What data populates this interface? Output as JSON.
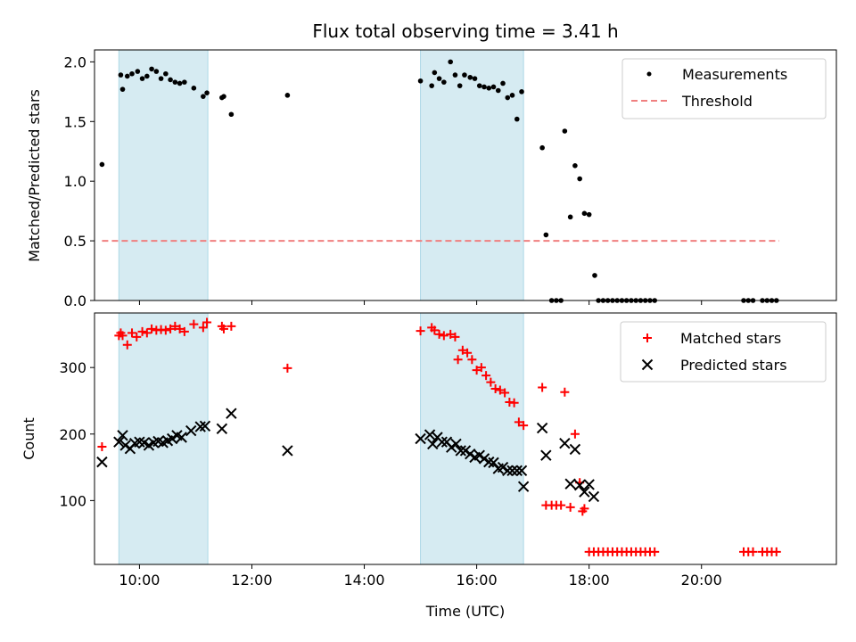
{
  "chart_data": {
    "title": "Flux total observing time = 3.41 h",
    "xlabel": "Time (UTC)",
    "x_unit": "hours UTC",
    "xlim": [
      "09:12",
      "22:24"
    ],
    "xticks": [
      "10:00",
      "12:00",
      "14:00",
      "16:00",
      "18:00",
      "20:00"
    ],
    "shaded_intervals": [
      [
        "09:38",
        "11:13"
      ],
      [
        "15:00",
        "16:50"
      ]
    ],
    "shaded_color": "#add8e6",
    "panels": [
      {
        "type": "scatter",
        "ylabel": "Matched/Predicted stars",
        "ylim": [
          0,
          2.1
        ],
        "yticks": [
          "0.0",
          "0.5",
          "1.0",
          "1.5",
          "2.0"
        ],
        "legend": "top-right",
        "threshold": {
          "name": "Threshold",
          "value": 0.5,
          "x_range": [
            "09:20",
            "21:23"
          ],
          "color": "#f08080"
        },
        "series": [
          {
            "name": "Measurements",
            "color": "#000000",
            "marker": "dot",
            "points": [
              [
                "09:20",
                1.14
              ],
              [
                "09:40",
                1.89
              ],
              [
                "09:42",
                1.77
              ],
              [
                "09:47",
                1.88
              ],
              [
                "09:52",
                1.9
              ],
              [
                "09:58",
                1.92
              ],
              [
                "10:03",
                1.86
              ],
              [
                "10:08",
                1.88
              ],
              [
                "10:13",
                1.94
              ],
              [
                "10:18",
                1.92
              ],
              [
                "10:23",
                1.86
              ],
              [
                "10:28",
                1.9
              ],
              [
                "10:33",
                1.85
              ],
              [
                "10:38",
                1.83
              ],
              [
                "10:43",
                1.82
              ],
              [
                "10:48",
                1.83
              ],
              [
                "10:58",
                1.78
              ],
              [
                "11:08",
                1.71
              ],
              [
                "11:12",
                1.74
              ],
              [
                "11:28",
                1.7
              ],
              [
                "11:30",
                1.71
              ],
              [
                "11:38",
                1.56
              ],
              [
                "12:38",
                1.72
              ],
              [
                "15:00",
                1.84
              ],
              [
                "15:12",
                1.8
              ],
              [
                "15:15",
                1.91
              ],
              [
                "15:20",
                1.86
              ],
              [
                "15:25",
                1.83
              ],
              [
                "15:32",
                2.0
              ],
              [
                "15:37",
                1.89
              ],
              [
                "15:42",
                1.8
              ],
              [
                "15:47",
                1.89
              ],
              [
                "15:53",
                1.87
              ],
              [
                "15:58",
                1.86
              ],
              [
                "16:03",
                1.8
              ],
              [
                "16:08",
                1.79
              ],
              [
                "16:13",
                1.78
              ],
              [
                "16:18",
                1.79
              ],
              [
                "16:23",
                1.76
              ],
              [
                "16:28",
                1.82
              ],
              [
                "16:33",
                1.7
              ],
              [
                "16:38",
                1.72
              ],
              [
                "16:43",
                1.52
              ],
              [
                "16:48",
                1.75
              ],
              [
                "17:10",
                1.28
              ],
              [
                "17:14",
                0.55
              ],
              [
                "17:20",
                0.0
              ],
              [
                "17:25",
                0.0
              ],
              [
                "17:30",
                0.0
              ],
              [
                "17:34",
                1.42
              ],
              [
                "17:40",
                0.7
              ],
              [
                "17:45",
                1.13
              ],
              [
                "17:50",
                1.02
              ],
              [
                "17:55",
                0.73
              ],
              [
                "18:00",
                0.72
              ],
              [
                "18:06",
                0.21
              ],
              [
                "18:10",
                0.0
              ],
              [
                "18:15",
                0.0
              ],
              [
                "18:20",
                0.0
              ],
              [
                "18:25",
                0.0
              ],
              [
                "18:30",
                0.0
              ],
              [
                "18:35",
                0.0
              ],
              [
                "18:40",
                0.0
              ],
              [
                "18:45",
                0.0
              ],
              [
                "18:50",
                0.0
              ],
              [
                "18:55",
                0.0
              ],
              [
                "19:00",
                0.0
              ],
              [
                "19:05",
                0.0
              ],
              [
                "19:10",
                0.0
              ],
              [
                "20:45",
                0.0
              ],
              [
                "20:50",
                0.0
              ],
              [
                "20:55",
                0.0
              ],
              [
                "21:05",
                0.0
              ],
              [
                "21:10",
                0.0
              ],
              [
                "21:15",
                0.0
              ],
              [
                "21:20",
                0.0
              ]
            ]
          }
        ]
      },
      {
        "type": "scatter",
        "ylabel": "Count",
        "ylim": [
          4,
          382
        ],
        "yticks": [
          "100",
          "200",
          "300"
        ],
        "legend": "top-right",
        "series": [
          {
            "name": "Matched stars",
            "color": "#ff0000",
            "marker": "plus",
            "points": [
              [
                "09:20",
                181
              ],
              [
                "09:38",
                348
              ],
              [
                "09:40",
                352
              ],
              [
                "09:42",
                348
              ],
              [
                "09:47",
                334
              ],
              [
                "09:52",
                352
              ],
              [
                "09:57",
                346
              ],
              [
                "10:03",
                354
              ],
              [
                "10:08",
                352
              ],
              [
                "10:13",
                358
              ],
              [
                "10:18",
                356
              ],
              [
                "10:23",
                357
              ],
              [
                "10:28",
                356
              ],
              [
                "10:33",
                358
              ],
              [
                "10:38",
                362
              ],
              [
                "10:43",
                358
              ],
              [
                "10:48",
                354
              ],
              [
                "10:58",
                365
              ],
              [
                "11:08",
                360
              ],
              [
                "11:12",
                368
              ],
              [
                "11:28",
                362
              ],
              [
                "11:30",
                358
              ],
              [
                "11:38",
                362
              ],
              [
                "12:38",
                299
              ],
              [
                "15:00",
                355
              ],
              [
                "15:12",
                360
              ],
              [
                "15:15",
                356
              ],
              [
                "15:20",
                350
              ],
              [
                "15:25",
                348
              ],
              [
                "15:32",
                350
              ],
              [
                "15:37",
                346
              ],
              [
                "15:40",
                312
              ],
              [
                "15:45",
                326
              ],
              [
                "15:50",
                322
              ],
              [
                "15:55",
                312
              ],
              [
                "16:00",
                296
              ],
              [
                "16:05",
                300
              ],
              [
                "16:10",
                288
              ],
              [
                "16:15",
                278
              ],
              [
                "16:20",
                268
              ],
              [
                "16:25",
                266
              ],
              [
                "16:30",
                262
              ],
              [
                "16:35",
                248
              ],
              [
                "16:40",
                247
              ],
              [
                "16:45",
                218
              ],
              [
                "16:50",
                213
              ],
              [
                "17:10",
                270
              ],
              [
                "17:14",
                93
              ],
              [
                "17:20",
                93
              ],
              [
                "17:25",
                93
              ],
              [
                "17:30",
                93
              ],
              [
                "17:34",
                263
              ],
              [
                "17:40",
                90
              ],
              [
                "17:45",
                200
              ],
              [
                "17:50",
                127
              ],
              [
                "17:53",
                84
              ],
              [
                "17:55",
                88
              ],
              [
                "18:00",
                23
              ],
              [
                "18:05",
                23
              ],
              [
                "18:10",
                23
              ],
              [
                "18:15",
                23
              ],
              [
                "18:20",
                23
              ],
              [
                "18:25",
                23
              ],
              [
                "18:30",
                23
              ],
              [
                "18:35",
                23
              ],
              [
                "18:40",
                23
              ],
              [
                "18:45",
                23
              ],
              [
                "18:50",
                23
              ],
              [
                "18:55",
                23
              ],
              [
                "19:00",
                23
              ],
              [
                "19:05",
                23
              ],
              [
                "19:10",
                23
              ],
              [
                "20:45",
                23
              ],
              [
                "20:50",
                23
              ],
              [
                "20:55",
                23
              ],
              [
                "21:05",
                23
              ],
              [
                "21:10",
                23
              ],
              [
                "21:15",
                23
              ],
              [
                "21:20",
                23
              ]
            ]
          },
          {
            "name": "Predicted stars",
            "color": "#000000",
            "marker": "x",
            "points": [
              [
                "09:20",
                158
              ],
              [
                "09:38",
                188
              ],
              [
                "09:42",
                198
              ],
              [
                "09:45",
                183
              ],
              [
                "09:50",
                178
              ],
              [
                "09:55",
                186
              ],
              [
                "10:00",
                188
              ],
              [
                "10:05",
                187
              ],
              [
                "10:10",
                183
              ],
              [
                "10:15",
                187
              ],
              [
                "10:20",
                189
              ],
              [
                "10:25",
                187
              ],
              [
                "10:30",
                190
              ],
              [
                "10:35",
                193
              ],
              [
                "10:40",
                198
              ],
              [
                "10:45",
                195
              ],
              [
                "10:55",
                205
              ],
              [
                "11:05",
                211
              ],
              [
                "11:10",
                212
              ],
              [
                "11:28",
                208
              ],
              [
                "11:38",
                231
              ],
              [
                "12:38",
                175
              ],
              [
                "15:00",
                193
              ],
              [
                "15:10",
                199
              ],
              [
                "15:13",
                185
              ],
              [
                "15:18",
                195
              ],
              [
                "15:23",
                188
              ],
              [
                "15:28",
                188
              ],
              [
                "15:33",
                180
              ],
              [
                "15:38",
                185
              ],
              [
                "15:43",
                175
              ],
              [
                "15:48",
                175
              ],
              [
                "15:53",
                170
              ],
              [
                "15:58",
                165
              ],
              [
                "16:03",
                168
              ],
              [
                "16:08",
                163
              ],
              [
                "16:13",
                158
              ],
              [
                "16:18",
                157
              ],
              [
                "16:23",
                148
              ],
              [
                "16:28",
                150
              ],
              [
                "16:33",
                145
              ],
              [
                "16:38",
                145
              ],
              [
                "16:43",
                145
              ],
              [
                "16:48",
                145
              ],
              [
                "16:50",
                121
              ],
              [
                "17:10",
                209
              ],
              [
                "17:14",
                168
              ],
              [
                "17:34",
                186
              ],
              [
                "17:40",
                125
              ],
              [
                "17:45",
                177
              ],
              [
                "17:50",
                123
              ],
              [
                "17:55",
                113
              ],
              [
                "18:00",
                124
              ],
              [
                "18:05",
                106
              ]
            ]
          }
        ]
      }
    ]
  }
}
